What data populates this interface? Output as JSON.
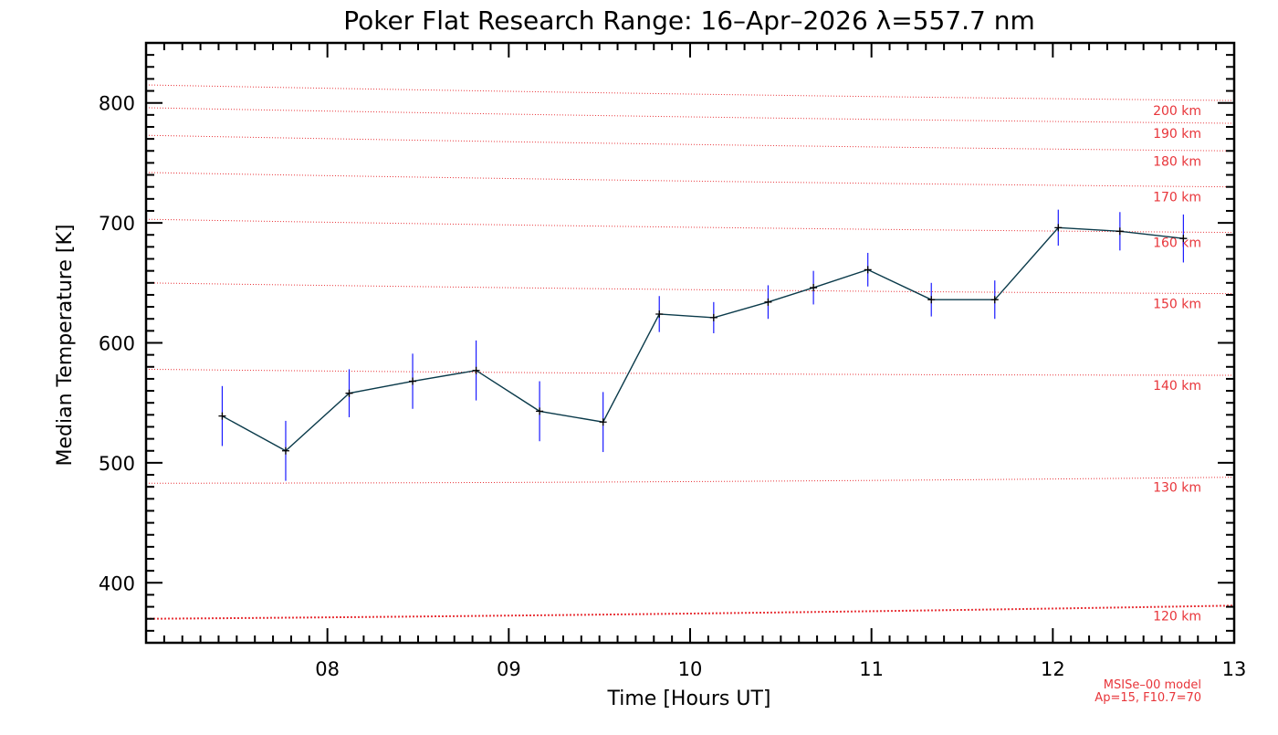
{
  "chart_data": {
    "type": "line",
    "title": "Poker Flat Research Range: 16–Apr–2026 λ=557.7 nm",
    "xlabel": "Time [Hours UT]",
    "ylabel": "Median Temperature [K]",
    "xlim": [
      7.0,
      13.0
    ],
    "ylim": [
      350,
      850
    ],
    "xticks": [
      {
        "v": 8,
        "label": "08"
      },
      {
        "v": 9,
        "label": "09"
      },
      {
        "v": 10,
        "label": "10"
      },
      {
        "v": 11,
        "label": "11"
      },
      {
        "v": 12,
        "label": "12"
      },
      {
        "v": 13,
        "label": "13"
      }
    ],
    "yticks": [
      {
        "v": 400,
        "label": "400"
      },
      {
        "v": 500,
        "label": "500"
      },
      {
        "v": 600,
        "label": "600"
      },
      {
        "v": 700,
        "label": "700"
      },
      {
        "v": 800,
        "label": "800"
      }
    ],
    "grid": false,
    "series": [
      {
        "color": "#0a3a4a",
        "error_color": "#1a1aff",
        "x": [
          7.42,
          7.77,
          8.12,
          8.47,
          8.82,
          9.17,
          9.52,
          9.83,
          10.13,
          10.43,
          10.68,
          10.98,
          11.33,
          11.68,
          12.03,
          12.37,
          12.72
        ],
        "y": [
          539,
          510,
          558,
          568,
          577,
          543,
          534,
          624,
          621,
          634,
          646,
          661,
          636,
          636,
          696,
          693,
          687
        ],
        "err": [
          25,
          25,
          20,
          23,
          25,
          25,
          25,
          15,
          13,
          14,
          14,
          14,
          14,
          16,
          15,
          16,
          20
        ]
      }
    ],
    "msis_lines": [
      {
        "label": "120 km",
        "y_start": 370,
        "y_end": 381
      },
      {
        "label": "130 km",
        "y_start": 483,
        "y_end": 488
      },
      {
        "label": "140 km",
        "y_start": 578,
        "y_end": 573
      },
      {
        "label": "150 km",
        "y_start": 650,
        "y_end": 641
      },
      {
        "label": "160 km",
        "y_start": 703,
        "y_end": 692
      },
      {
        "label": "170 km",
        "y_start": 742,
        "y_end": 730
      },
      {
        "label": "180 km",
        "y_start": 773,
        "y_end": 760
      },
      {
        "label": "190 km",
        "y_start": 796,
        "y_end": 783
      },
      {
        "label": "200 km",
        "y_start": 815,
        "y_end": 802
      }
    ],
    "msis_color": "#e8353a",
    "model_note": [
      "MSISe–00 model",
      "Ap=15, F10.7=70"
    ]
  }
}
